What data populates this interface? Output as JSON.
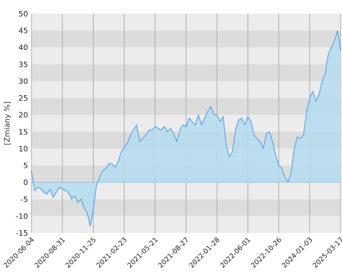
{
  "chart_data": {
    "type": "area",
    "ylabel": "[Zmiany %]",
    "ylim": [
      -15,
      50
    ],
    "y_ticks": [
      -15,
      -10,
      -5,
      0,
      5,
      10,
      15,
      20,
      25,
      30,
      35,
      40,
      45,
      50
    ],
    "x_tick_labels": [
      "2020-06-04",
      "2020-08-31",
      "2020-11-25",
      "2021-02-23",
      "2021-05-21",
      "2021-08-27",
      "2022-01-28",
      "2022-06-01",
      "2022-10-26",
      "2024-01-03",
      "2025-03-17"
    ],
    "grid": true,
    "colors": {
      "line": "#4a9fe6",
      "fill": "#b4dcf0",
      "band_dark": "#dcdcdc",
      "band_light": "#ececec",
      "vgrid": "#a8a8a8"
    },
    "series": [
      {
        "x": [
          0,
          1,
          2,
          3,
          4,
          5,
          6,
          7,
          8,
          9,
          10,
          11,
          12,
          13,
          14,
          15,
          16,
          17,
          18,
          19,
          20,
          21,
          22,
          23,
          24,
          25,
          26,
          27,
          28,
          29,
          30,
          31,
          32,
          33,
          34,
          35,
          36,
          37,
          38,
          39,
          40,
          41,
          42,
          43,
          44,
          45,
          46,
          47,
          48,
          49,
          50,
          51,
          52,
          53,
          54,
          55,
          56,
          57,
          58,
          59,
          60,
          61,
          62,
          63,
          64,
          65,
          66,
          67,
          68,
          69,
          70,
          71,
          72,
          73,
          74,
          75,
          76,
          77,
          78,
          79,
          80,
          81,
          82,
          83,
          84,
          85,
          86,
          87,
          88,
          89,
          90,
          91,
          92,
          93,
          94,
          95,
          96,
          97,
          98,
          99,
          100
        ],
        "values": [
          3.5,
          -2.5,
          -1.5,
          -1.8,
          -3,
          -3.5,
          -2,
          -4.5,
          -3,
          -1.5,
          -2,
          -2.5,
          -3,
          -5,
          -4,
          -6,
          -5,
          -7.5,
          -9,
          -13,
          -8,
          -1,
          1.5,
          3.5,
          4,
          5.5,
          5.5,
          4.5,
          6,
          9,
          10.5,
          11.5,
          14,
          15.5,
          17,
          12,
          13,
          14,
          15.5,
          15.5,
          16.5,
          16,
          15.5,
          16.5,
          15,
          16,
          14.5,
          12,
          15.5,
          17,
          16.5,
          19,
          18,
          17,
          20,
          17,
          19,
          21,
          22.5,
          20,
          20,
          18,
          19.5,
          11,
          7.5,
          9,
          15.5,
          18.5,
          19,
          17,
          19.5,
          18,
          14,
          13,
          12,
          10,
          14.5,
          15,
          12,
          8,
          5,
          4,
          1.5,
          0,
          3,
          10,
          13.5,
          13,
          14,
          21,
          25,
          27,
          24,
          26,
          30,
          32,
          38,
          40,
          42,
          45,
          39
        ]
      }
    ]
  }
}
